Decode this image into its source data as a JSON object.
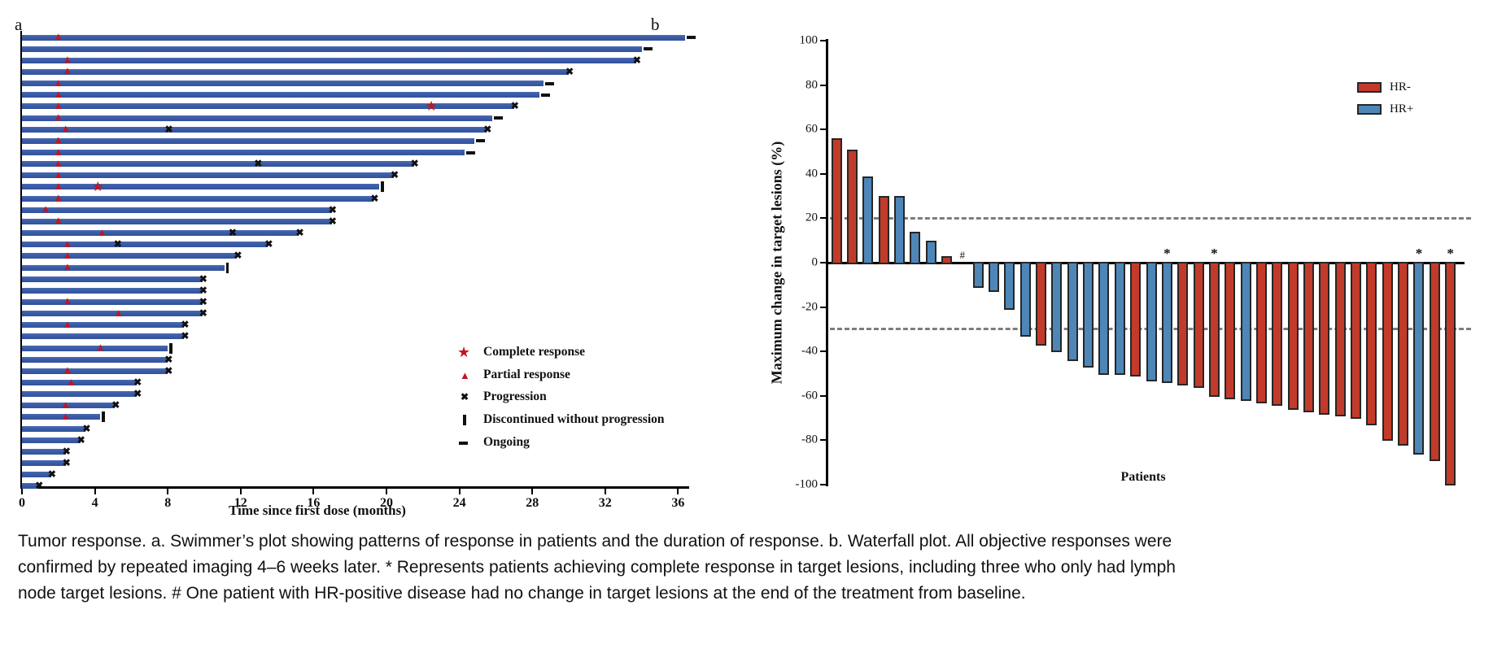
{
  "figure": {
    "panel_a_label": "a",
    "panel_b_label": "b"
  },
  "caption": "Tumor response. a. Swimmer’s plot showing patterns of response in patients and the duration of response. b. Waterfall plot. All objective responses were confirmed by repeated imaging 4–6 weeks later. * Represents patients achieving complete response in target lesions, including three who only had lymph node target lesions. # One patient with HR-positive disease had no change in target lesions at the end of the treatment from baseline.",
  "colors": {
    "swimmer_bar_blue": "#3a5ba6",
    "response_red": "#bf1722",
    "marker_black": "#111111",
    "waterfall_red": "#c23b2a",
    "waterfall_blue": "#4e86b8",
    "bar_outline": "#262626",
    "reference_dash_gray": "#7d7d7d"
  },
  "chart_data": [
    {
      "type": "bar",
      "id": "swimmer-plot",
      "orientation": "horizontal",
      "xlabel": "Time since first dose (months)",
      "xlim": [
        0,
        37
      ],
      "xticks": [
        0,
        4,
        8,
        12,
        16,
        20,
        24,
        28,
        32,
        36
      ],
      "grid": false,
      "bar_color": "#3a5ba6",
      "legend_position": "lower-right-inside",
      "legend": [
        {
          "marker": "star",
          "color": "#bf1722",
          "label": "Complete response"
        },
        {
          "marker": "triangle",
          "color": "#bf1722",
          "label": "Partial response"
        },
        {
          "marker": "x",
          "color": "#111111",
          "label": "Progression"
        },
        {
          "marker": "bar",
          "color": "#111111",
          "label": "Discontinued without progression"
        },
        {
          "marker": "dash",
          "color": "#111111",
          "label": "Ongoing"
        }
      ],
      "patients": [
        {
          "duration": 36.4,
          "pr": 2.0,
          "end": "ongoing"
        },
        {
          "duration": 34.0,
          "end": "ongoing"
        },
        {
          "duration": 33.7,
          "pr": 2.5,
          "end": "progression"
        },
        {
          "duration": 30.0,
          "pr": 2.5,
          "end": "progression"
        },
        {
          "duration": 28.6,
          "pr": 2.0,
          "end": "ongoing"
        },
        {
          "duration": 28.4,
          "pr": 2.0,
          "end": "ongoing"
        },
        {
          "duration": 27.0,
          "pr": 2.0,
          "cr": 22.5,
          "end": "progression"
        },
        {
          "duration": 25.8,
          "pr": 2.0,
          "end": "ongoing"
        },
        {
          "duration": 25.5,
          "pr": 2.4,
          "x": [
            8.1
          ],
          "end": "progression"
        },
        {
          "duration": 24.8,
          "pr": 2.0,
          "end": "ongoing"
        },
        {
          "duration": 24.3,
          "pr": 2.0,
          "end": "ongoing"
        },
        {
          "duration": 21.5,
          "pr": 2.0,
          "x": [
            13.0
          ],
          "end": "progression"
        },
        {
          "duration": 20.4,
          "pr": 2.0,
          "end": "progression"
        },
        {
          "duration": 19.6,
          "pr": 2.0,
          "cr": 4.2,
          "end": "discontinued"
        },
        {
          "duration": 19.3,
          "pr": 2.0,
          "end": "progression"
        },
        {
          "duration": 17.0,
          "pr": 1.3,
          "end": "progression"
        },
        {
          "duration": 17.0,
          "pr": 2.0,
          "end": "progression"
        },
        {
          "duration": 15.2,
          "pr": 4.4,
          "x": [
            11.6
          ],
          "end": "progression"
        },
        {
          "duration": 13.5,
          "pr": 2.5,
          "x": [
            5.3
          ],
          "end": "progression"
        },
        {
          "duration": 11.8,
          "pr": 2.5,
          "end": "progression"
        },
        {
          "duration": 11.1,
          "pr": 2.5,
          "end": "discontinued"
        },
        {
          "duration": 9.9,
          "end": "progression"
        },
        {
          "duration": 9.9,
          "end": "progression"
        },
        {
          "duration": 9.9,
          "pr": 2.5,
          "end": "progression"
        },
        {
          "duration": 9.9,
          "pr": 5.3,
          "end": "progression"
        },
        {
          "duration": 8.9,
          "pr": 2.5,
          "end": "progression"
        },
        {
          "duration": 8.9,
          "end": "progression"
        },
        {
          "duration": 8.0,
          "pr": 4.3,
          "end": "discontinued"
        },
        {
          "duration": 8.0,
          "end": "progression"
        },
        {
          "duration": 8.0,
          "pr": 2.5,
          "end": "progression"
        },
        {
          "duration": 6.3,
          "pr": 2.7,
          "end": "progression"
        },
        {
          "duration": 6.3,
          "end": "progression"
        },
        {
          "duration": 5.1,
          "pr": 2.4,
          "end": "progression"
        },
        {
          "duration": 4.3,
          "pr": 2.4,
          "end": "discontinued"
        },
        {
          "duration": 3.5,
          "end": "progression"
        },
        {
          "duration": 3.2,
          "end": "progression"
        },
        {
          "duration": 2.4,
          "end": "progression"
        },
        {
          "duration": 2.4,
          "end": "progression"
        },
        {
          "duration": 1.6,
          "end": "progression"
        },
        {
          "duration": 0.9,
          "end": "progression"
        }
      ]
    },
    {
      "type": "bar",
      "id": "waterfall-plot",
      "ylabel": "Maximum change in target lesions (%)",
      "xlabel": "Patients",
      "ylim": [
        -100,
        100
      ],
      "yticks": [
        100,
        80,
        60,
        40,
        20,
        0,
        -20,
        -40,
        -60,
        -80,
        -100
      ],
      "reference_lines": [
        20,
        -30
      ],
      "grid": false,
      "legend_position": "upper-right-inside",
      "groups": {
        "HR-": "#c23b2a",
        "HR+": "#4e86b8"
      },
      "legend": [
        {
          "label": "HR-",
          "color": "#c23b2a"
        },
        {
          "label": "HR+",
          "color": "#4e86b8"
        }
      ],
      "flags_meaning": {
        "star": "complete response in target lesions",
        "hash": "no change from baseline"
      },
      "bars": [
        {
          "value": 56,
          "group": "HR-"
        },
        {
          "value": 51,
          "group": "HR-"
        },
        {
          "value": 39,
          "group": "HR+"
        },
        {
          "value": 30,
          "group": "HR-"
        },
        {
          "value": 30,
          "group": "HR+"
        },
        {
          "value": 14,
          "group": "HR+"
        },
        {
          "value": 10,
          "group": "HR+"
        },
        {
          "value": 3,
          "group": "HR-"
        },
        {
          "value": 0,
          "group": "HR+",
          "flag": "hash"
        },
        {
          "value": -11,
          "group": "HR+"
        },
        {
          "value": -13,
          "group": "HR+"
        },
        {
          "value": -21,
          "group": "HR+"
        },
        {
          "value": -33,
          "group": "HR+"
        },
        {
          "value": -37,
          "group": "HR-"
        },
        {
          "value": -40,
          "group": "HR+"
        },
        {
          "value": -44,
          "group": "HR+"
        },
        {
          "value": -47,
          "group": "HR+"
        },
        {
          "value": -50,
          "group": "HR+"
        },
        {
          "value": -50,
          "group": "HR+"
        },
        {
          "value": -51,
          "group": "HR-"
        },
        {
          "value": -53,
          "group": "HR+"
        },
        {
          "value": -54,
          "group": "HR+",
          "flag": "star"
        },
        {
          "value": -55,
          "group": "HR-"
        },
        {
          "value": -56,
          "group": "HR-"
        },
        {
          "value": -60,
          "group": "HR-",
          "flag": "star"
        },
        {
          "value": -61,
          "group": "HR-"
        },
        {
          "value": -62,
          "group": "HR+"
        },
        {
          "value": -63,
          "group": "HR-"
        },
        {
          "value": -64,
          "group": "HR-"
        },
        {
          "value": -66,
          "group": "HR-"
        },
        {
          "value": -67,
          "group": "HR-"
        },
        {
          "value": -68,
          "group": "HR-"
        },
        {
          "value": -69,
          "group": "HR-"
        },
        {
          "value": -70,
          "group": "HR-"
        },
        {
          "value": -73,
          "group": "HR-"
        },
        {
          "value": -80,
          "group": "HR-"
        },
        {
          "value": -82,
          "group": "HR-"
        },
        {
          "value": -86,
          "group": "HR+",
          "flag": "star"
        },
        {
          "value": -89,
          "group": "HR-"
        },
        {
          "value": -100,
          "group": "HR-",
          "flag": "star"
        }
      ]
    }
  ]
}
